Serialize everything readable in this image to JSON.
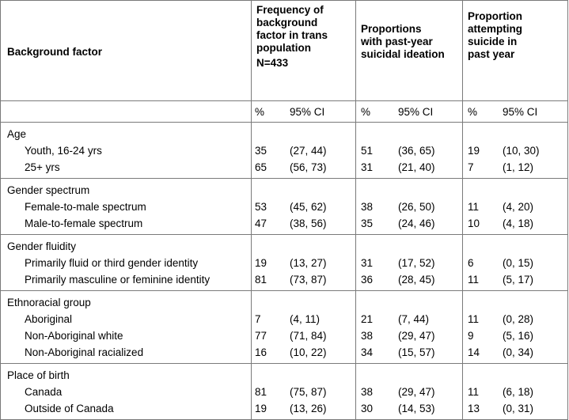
{
  "table": {
    "headers": {
      "background": "Background factor",
      "freq": [
        "Frequency of",
        "background",
        "factor in trans",
        "population",
        "N=433"
      ],
      "ideation": [
        "Proportions",
        "with past-year",
        "suicidal ideation"
      ],
      "attempt": [
        "Proportion",
        "attempting",
        "suicide in",
        "past year"
      ]
    },
    "subheaders": {
      "pct": "%",
      "ci": "95% CI"
    },
    "groups": [
      {
        "label": "Age",
        "rows": [
          {
            "label": "Youth, 16-24 yrs",
            "freq_pct": "35",
            "freq_ci": "(27, 44)",
            "ide_pct": "51",
            "ide_ci": "(36, 65)",
            "att_pct": "19",
            "att_ci": "(10, 30)"
          },
          {
            "label": "25+ yrs",
            "freq_pct": "65",
            "freq_ci": "(56, 73)",
            "ide_pct": "31",
            "ide_ci": "(21, 40)",
            "att_pct": "7",
            "att_ci": "(1, 12)"
          }
        ]
      },
      {
        "label": "Gender spectrum",
        "rows": [
          {
            "label": "Female-to-male spectrum",
            "freq_pct": "53",
            "freq_ci": "(45, 62)",
            "ide_pct": "38",
            "ide_ci": "(26, 50)",
            "att_pct": "11",
            "att_ci": "(4, 20)"
          },
          {
            "label": "Male-to-female spectrum",
            "freq_pct": "47",
            "freq_ci": "(38, 56)",
            "ide_pct": "35",
            "ide_ci": "(24, 46)",
            "att_pct": "10",
            "att_ci": "(4, 18)"
          }
        ]
      },
      {
        "label": "Gender fluidity",
        "rows": [
          {
            "label": "Primarily fluid or third gender identity",
            "freq_pct": "19",
            "freq_ci": "(13, 27)",
            "ide_pct": "31",
            "ide_ci": "(17, 52)",
            "att_pct": "6",
            "att_ci": "(0, 15)"
          },
          {
            "label": "Primarily masculine or feminine identity",
            "freq_pct": "81",
            "freq_ci": "(73, 87)",
            "ide_pct": "36",
            "ide_ci": "(28, 45)",
            "att_pct": "11",
            "att_ci": "(5, 17)"
          }
        ]
      },
      {
        "label": "Ethnoracial group",
        "rows": [
          {
            "label": "Aboriginal",
            "freq_pct": "7",
            "freq_ci": "(4, 11)",
            "ide_pct": "21",
            "ide_ci": "(7, 44)",
            "att_pct": "11",
            "att_ci": "(0, 28)"
          },
          {
            "label": "Non-Aboriginal white",
            "freq_pct": "77",
            "freq_ci": "(71, 84)",
            "ide_pct": "38",
            "ide_ci": "(29, 47)",
            "att_pct": "9",
            "att_ci": "(5, 16)"
          },
          {
            "label": "Non-Aboriginal racialized",
            "freq_pct": "16",
            "freq_ci": "(10, 22)",
            "ide_pct": "34",
            "ide_ci": "(15, 57)",
            "att_pct": "14",
            "att_ci": "(0, 34)"
          }
        ]
      },
      {
        "label": "Place of birth",
        "rows": [
          {
            "label": "Canada",
            "freq_pct": "81",
            "freq_ci": "(75, 87)",
            "ide_pct": "38",
            "ide_ci": "(29, 47)",
            "att_pct": "11",
            "att_ci": "(6, 18)"
          },
          {
            "label": "Outside of Canada",
            "freq_pct": "19",
            "freq_ci": "(13, 26)",
            "ide_pct": "30",
            "ide_ci": "(14, 53)",
            "att_pct": "13",
            "att_ci": "(0, 31)"
          }
        ]
      }
    ]
  }
}
